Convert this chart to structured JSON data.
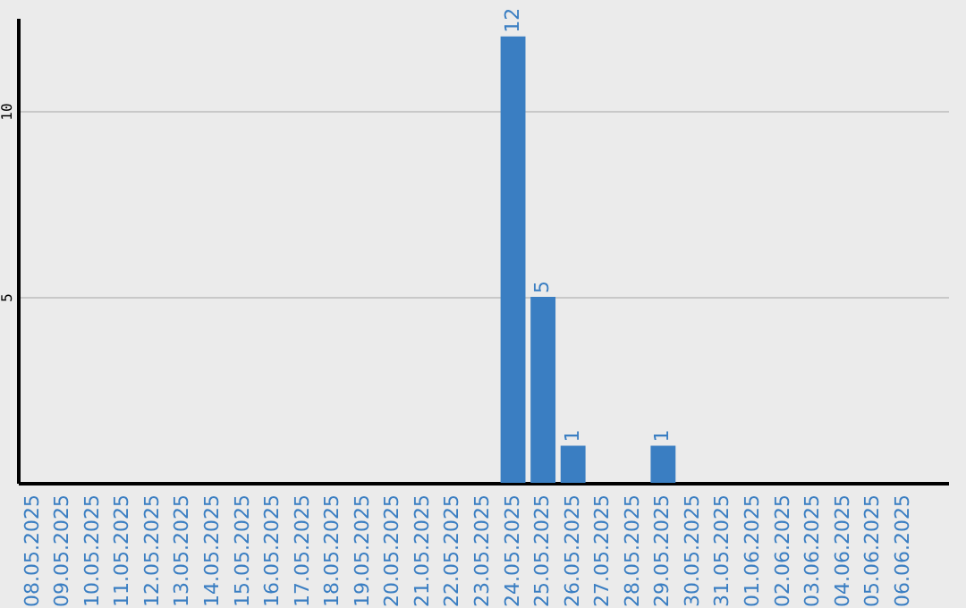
{
  "chart_data": {
    "type": "bar",
    "categories": [
      "08.05.2025",
      "09.05.2025",
      "10.05.2025",
      "11.05.2025",
      "12.05.2025",
      "13.05.2025",
      "14.05.2025",
      "15.05.2025",
      "16.05.2025",
      "17.05.2025",
      "18.05.2025",
      "19.05.2025",
      "20.05.2025",
      "21.05.2025",
      "22.05.2025",
      "23.05.2025",
      "24.05.2025",
      "25.05.2025",
      "26.05.2025",
      "27.05.2025",
      "28.05.2025",
      "29.05.2025",
      "30.05.2025",
      "31.05.2025",
      "01.06.2025",
      "02.06.2025",
      "03.06.2025",
      "04.06.2025",
      "05.06.2025",
      "06.06.2025",
      null
    ],
    "values": [
      0,
      0,
      0,
      0,
      0,
      0,
      0,
      0,
      0,
      0,
      0,
      0,
      0,
      0,
      0,
      0,
      12,
      5,
      1,
      0,
      0,
      1,
      0,
      0,
      0,
      0,
      0,
      0,
      0,
      0,
      0
    ],
    "value_labels": [
      null,
      null,
      null,
      null,
      null,
      null,
      null,
      null,
      null,
      null,
      null,
      null,
      null,
      null,
      null,
      null,
      "12",
      "5",
      "1",
      null,
      null,
      "1",
      null,
      null,
      null,
      null,
      null,
      null,
      null,
      null,
      null
    ],
    "color": "#3a7ec2",
    "ylim": [
      0,
      12.5
    ],
    "yticks": [
      5,
      10
    ],
    "grid": "y"
  }
}
